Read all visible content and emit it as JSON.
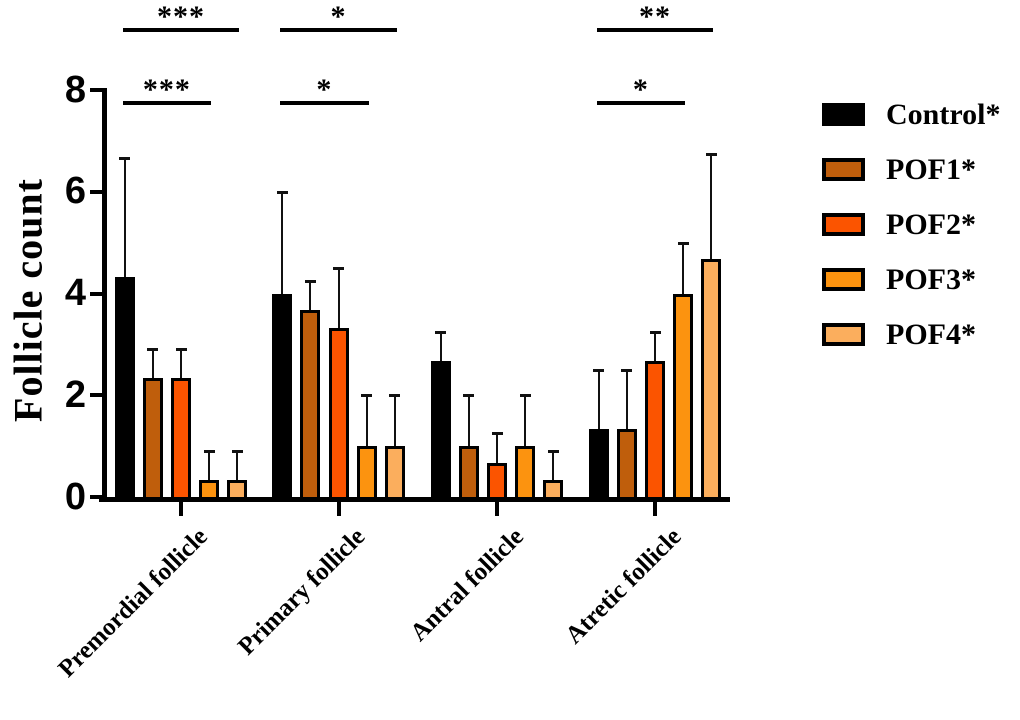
{
  "chart_data": {
    "type": "bar",
    "title": "",
    "xlabel": "",
    "ylabel": "Follicle count",
    "ylim": [
      0,
      8
    ],
    "yticks": [
      0,
      2,
      4,
      6,
      8
    ],
    "grid": false,
    "legend_position": "right",
    "error_bars": "upper-only",
    "categories": [
      "Premordial follicle",
      "Primary follicle",
      "Antral follicle",
      "Atretic follicle"
    ],
    "series": [
      {
        "name": "Control*",
        "color": "#000000",
        "values": [
          4.33,
          4.0,
          2.67,
          1.33
        ],
        "sd": [
          2.33,
          2.0,
          0.58,
          1.17
        ]
      },
      {
        "name": "POF1*",
        "color": "#BF5E0C",
        "values": [
          2.33,
          3.67,
          1.0,
          1.33
        ],
        "sd": [
          0.58,
          0.58,
          1.0,
          1.17
        ]
      },
      {
        "name": "POF2*",
        "color": "#FB5400",
        "values": [
          2.33,
          3.33,
          0.67,
          2.67
        ],
        "sd": [
          0.58,
          1.17,
          0.58,
          0.58
        ]
      },
      {
        "name": "POF3*",
        "color": "#FC930F",
        "values": [
          0.33,
          1.0,
          1.0,
          4.0
        ],
        "sd": [
          0.58,
          1.0,
          1.0,
          1.0
        ]
      },
      {
        "name": "POF4*",
        "color": "#FBAE5D",
        "values": [
          0.33,
          1.0,
          0.33,
          4.67
        ],
        "sd": [
          0.58,
          1.0,
          0.58,
          2.08
        ]
      }
    ],
    "significance": [
      {
        "group": "Premordial follicle",
        "from": "Control*",
        "to": "POF4*",
        "stars": "***",
        "row": "upper"
      },
      {
        "group": "Premordial follicle",
        "from": "Control*",
        "to": "POF3*",
        "stars": "***",
        "row": "lower"
      },
      {
        "group": "Primary follicle",
        "from": "Control*",
        "to": "POF4*",
        "stars": "*",
        "row": "upper"
      },
      {
        "group": "Primary follicle",
        "from": "Control*",
        "to": "POF3*",
        "stars": "*",
        "row": "lower"
      },
      {
        "group": "Atretic follicle",
        "from": "Control*",
        "to": "POF4*",
        "stars": "**",
        "row": "upper"
      },
      {
        "group": "Atretic follicle",
        "from": "Control*",
        "to": "POF3*",
        "stars": "*",
        "row": "lower"
      }
    ]
  }
}
